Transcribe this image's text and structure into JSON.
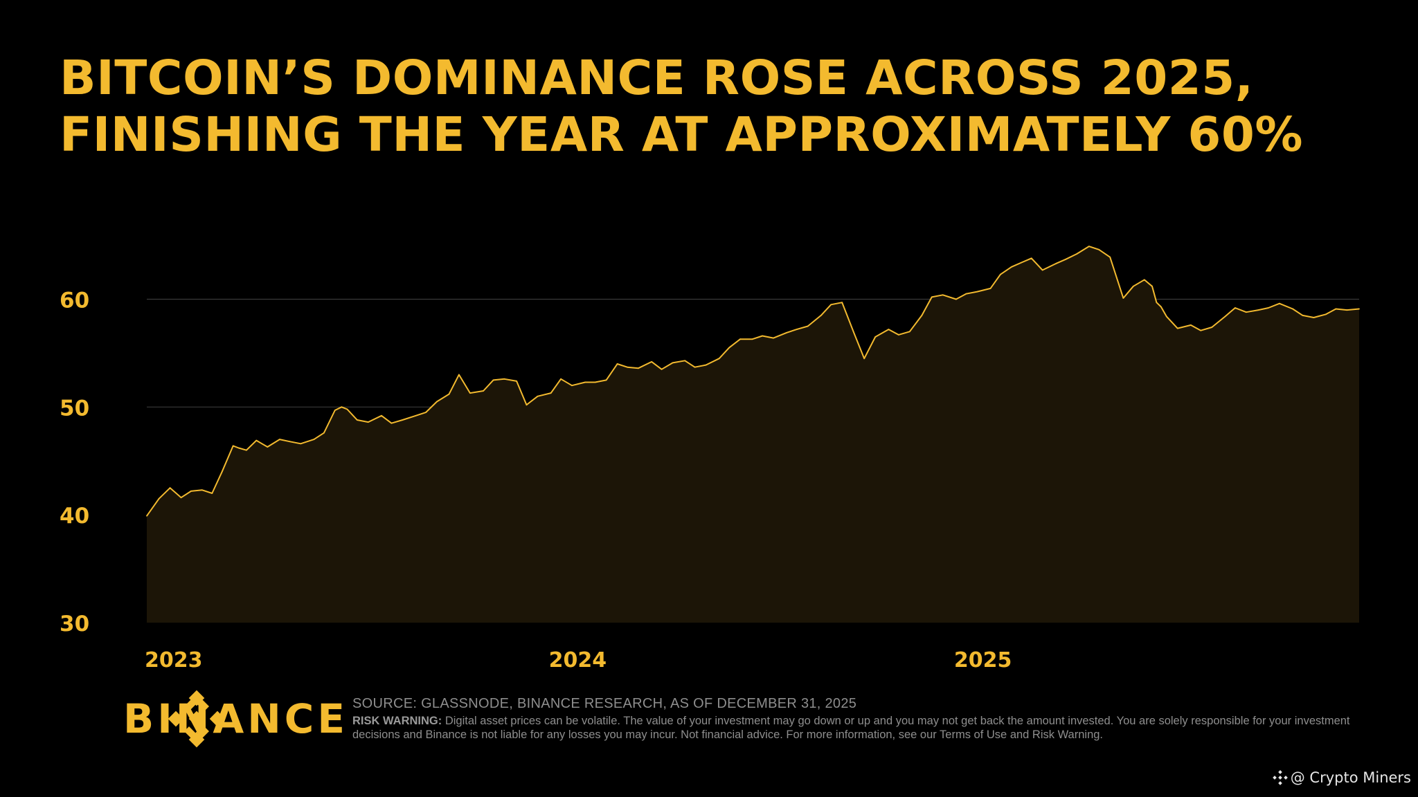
{
  "title": {
    "line1": "BITCOIN’S DOMINANCE ROSE ACROSS 2025,",
    "line2": "FINISHING THE YEAR AT APPROXIMATELY 60%"
  },
  "colors": {
    "accent": "#F3BA2F",
    "background": "#000000",
    "area_fill": "#1C1507",
    "gridline": "#3A3A3A",
    "footnote": "#8E8E8E"
  },
  "chart_data": {
    "type": "area",
    "title": "BITCOIN’S DOMINANCE ROSE ACROSS 2025, FINISHING THE YEAR AT APPROXIMATELY 60%",
    "xlabel": "",
    "ylabel": "",
    "ylim": [
      30,
      66
    ],
    "xlim": [
      "2023-01-01",
      "2025-12-31"
    ],
    "y_ticks": [
      30,
      40,
      50,
      60
    ],
    "x_ticks": [
      {
        "label": "2023",
        "date": "2023-01-01"
      },
      {
        "label": "2024",
        "date": "2024-01-01"
      },
      {
        "label": "2025",
        "date": "2025-01-01"
      }
    ],
    "grid": true,
    "legend": "none",
    "series": [
      {
        "x": [
          "2023-01-01",
          "2023-01-12",
          "2023-01-22",
          "2023-02-01",
          "2023-02-10",
          "2023-02-20",
          "2023-03-01",
          "2023-03-10",
          "2023-03-20",
          "2023-03-25",
          "2023-04-01",
          "2023-04-10",
          "2023-04-20",
          "2023-05-01",
          "2023-05-10",
          "2023-05-20",
          "2023-06-01",
          "2023-06-10",
          "2023-06-20",
          "2023-06-26",
          "2023-07-01",
          "2023-07-10",
          "2023-07-20",
          "2023-08-01",
          "2023-08-10",
          "2023-08-20",
          "2023-09-01",
          "2023-09-10",
          "2023-09-20",
          "2023-10-01",
          "2023-10-10",
          "2023-10-20",
          "2023-11-01",
          "2023-11-10",
          "2023-11-20",
          "2023-12-01",
          "2023-12-10",
          "2023-12-20",
          "2024-01-01",
          "2024-01-10",
          "2024-01-20",
          "2024-02-01",
          "2024-02-10",
          "2024-02-20",
          "2024-03-01",
          "2024-03-10",
          "2024-03-20",
          "2024-04-01",
          "2024-04-10",
          "2024-04-20",
          "2024-05-01",
          "2024-05-10",
          "2024-05-20",
          "2024-06-01",
          "2024-06-10",
          "2024-06-20",
          "2024-07-01",
          "2024-07-10",
          "2024-07-20",
          "2024-08-01",
          "2024-08-10",
          "2024-08-20",
          "2024-09-01",
          "2024-09-10",
          "2024-09-20",
          "2024-10-01",
          "2024-10-10",
          "2024-10-20",
          "2024-11-01",
          "2024-11-10",
          "2024-11-20",
          "2024-12-01",
          "2024-12-10",
          "2024-12-20",
          "2025-01-01",
          "2025-01-10",
          "2025-01-20",
          "2025-02-01",
          "2025-02-10",
          "2025-02-20",
          "2025-03-01",
          "2025-03-10",
          "2025-03-20",
          "2025-04-01",
          "2025-04-10",
          "2025-04-20",
          "2025-05-01",
          "2025-05-10",
          "2025-05-20",
          "2025-06-01",
          "2025-06-10",
          "2025-06-20",
          "2025-06-27",
          "2025-07-01",
          "2025-07-05",
          "2025-07-10",
          "2025-07-20",
          "2025-08-01",
          "2025-08-10",
          "2025-08-20",
          "2025-09-01",
          "2025-09-10",
          "2025-09-20",
          "2025-10-01",
          "2025-10-10",
          "2025-10-20",
          "2025-11-01",
          "2025-11-10",
          "2025-11-20",
          "2025-12-01",
          "2025-12-10",
          "2025-12-20",
          "2025-12-31"
        ],
        "values": [
          39.9,
          41.5,
          42.5,
          41.6,
          42.2,
          42.3,
          42.0,
          44.0,
          46.4,
          46.2,
          46.0,
          46.9,
          46.3,
          47.0,
          46.8,
          46.6,
          47.0,
          47.6,
          49.7,
          50.0,
          49.8,
          48.8,
          48.6,
          49.2,
          48.5,
          48.8,
          49.2,
          49.5,
          50.5,
          51.2,
          53.0,
          51.3,
          51.5,
          52.5,
          52.6,
          52.4,
          50.2,
          51.0,
          51.3,
          52.6,
          52.0,
          52.3,
          52.3,
          52.5,
          54.0,
          53.7,
          53.6,
          54.2,
          53.5,
          54.1,
          54.3,
          53.7,
          53.9,
          54.5,
          55.5,
          56.3,
          56.3,
          56.6,
          56.4,
          56.9,
          57.2,
          57.5,
          58.5,
          59.5,
          59.7,
          56.8,
          54.5,
          56.5,
          57.2,
          56.7,
          57.0,
          58.5,
          60.2,
          60.4,
          60.0,
          60.5,
          60.7,
          61.0,
          62.3,
          63.0,
          63.4,
          63.8,
          62.7,
          63.3,
          63.7,
          64.2,
          64.9,
          64.6,
          63.9,
          60.1,
          61.2,
          61.8,
          61.2,
          59.7,
          59.3,
          58.4,
          57.3,
          57.6,
          57.1,
          57.4,
          58.4,
          59.2,
          58.8,
          59.0,
          59.2,
          59.6,
          59.1,
          58.5,
          58.3,
          58.6,
          59.1,
          59.0,
          59.1
        ]
      }
    ]
  },
  "footer": {
    "brand": "BINANCE",
    "source": "SOURCE: GLASSNODE, BINANCE RESEARCH, AS OF DECEMBER 31, 2025",
    "risk_label": "RISK WARNING:",
    "risk_text": " Digital asset prices can be volatile. The value of your investment may go down or up and you may not get back the amount invested. You are solely responsible for your investment decisions and Binance is not liable for any losses you may incur. Not financial advice. For more information, see our Terms of Use and Risk Warning."
  },
  "watermark": {
    "icon": "binance-diamond-icon",
    "text": "@ Crypto Miners"
  }
}
